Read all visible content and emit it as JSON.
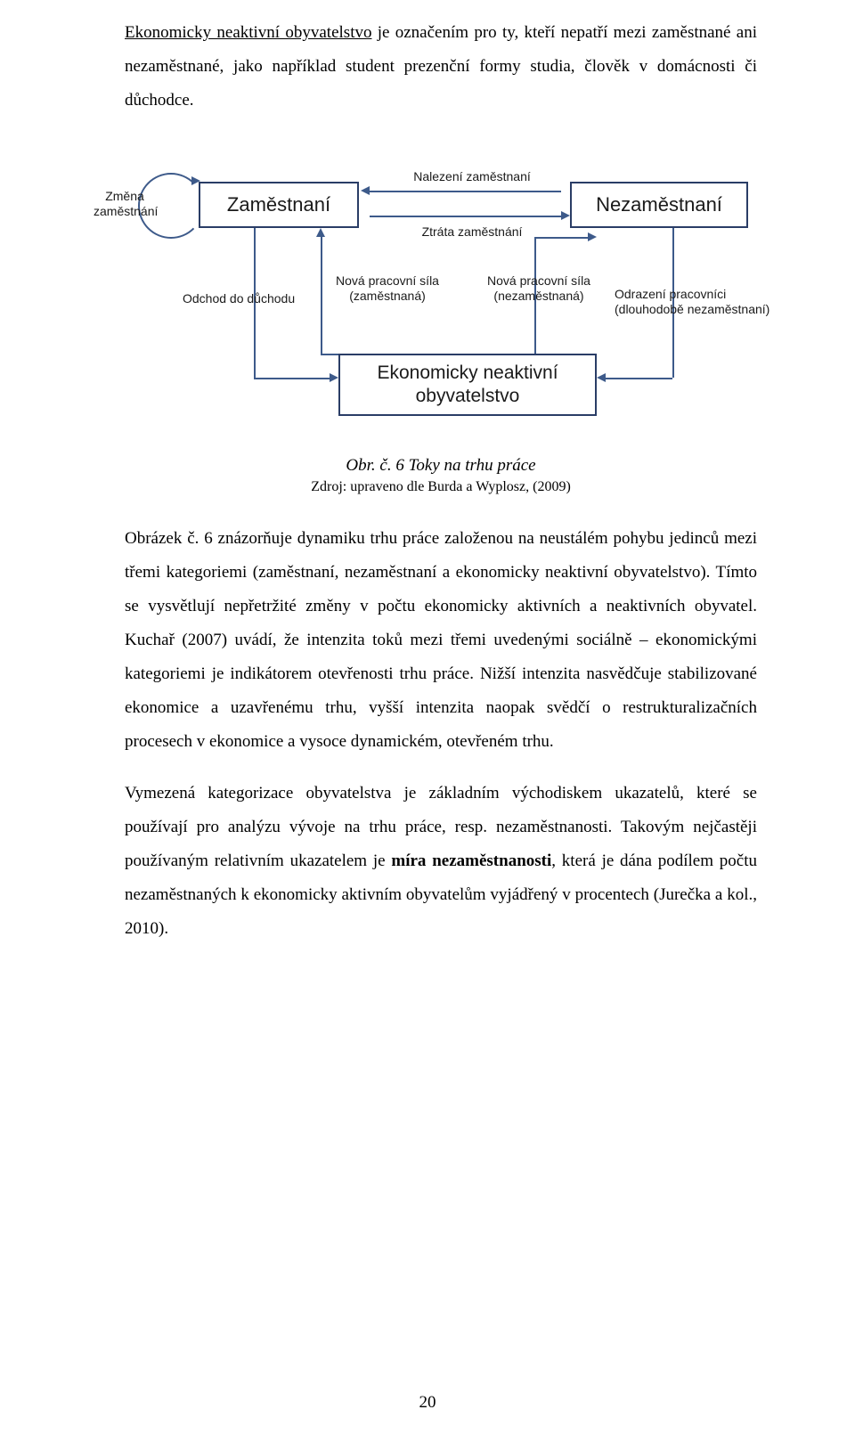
{
  "intro": {
    "lead_underline": "Ekonomicky neaktivní obyvatelstvo",
    "lead_rest": " je označením pro ty, kteří nepatří mezi zaměstnané ani nezaměstnané, jako například student prezenční formy studia, člověk v domácnosti či důchodce."
  },
  "diagram": {
    "colors": {
      "stroke": "#2a3d66",
      "arrow": "#3d5a8a",
      "text": "#1a1a1a",
      "bg": "#ffffff"
    },
    "boxes": {
      "employed": "Zaměstnaní",
      "unemployed": "Nezaměstnaní",
      "inactive_l1": "Ekonomicky neaktivní",
      "inactive_l2": "obyvatelstvo"
    },
    "labels": {
      "change_l1": "Změna",
      "change_l2": "zaměstnání",
      "find": "Nalezení zaměstnaní",
      "loss": "Ztráta zaměstnání",
      "retire": "Odchod do důchodu",
      "new_emp_l1": "Nová pracovní síla",
      "new_emp_l2": "(zaměstnaná)",
      "new_unemp_l1": "Nová pracovní síla",
      "new_unemp_l2": "(nezaměstnaná)",
      "discouraged_l1": "Odrazení pracovníci",
      "discouraged_l2": "(dlouhodobě nezaměstnaní)"
    }
  },
  "caption": "Obr. č. 6 Toky na trhu práce",
  "source": "Zdroj: upraveno dle Burda a Wyplosz, (2009)",
  "body1": {
    "p1_a": "Obrázek č. 6 znázorňuje dynamiku trhu práce založenou na neustálém pohybu jedinců mezi třemi kategoriemi (zaměstnaní, nezaměstnaní a ekonomicky neaktivní obyvatelstvo). Tímto se vysvětlují nepřetržité změny v počtu ekonomicky aktivních a neaktivních obyvatel. Kuchař (2007) uvádí, že intenzita toků mezi třemi uvedenými sociálně – ekonomickými kategoriemi je indikátorem otevřenosti trhu práce. Nižší intenzita nasvědčuje stabilizované ekonomice a uzavřenému trhu, vyšší intenzita naopak svědčí o restrukturalizačních procesech v ekonomice a vysoce dynamickém, otevřeném trhu."
  },
  "body2": {
    "p2_a": "Vymezená kategorizace obyvatelstva je základním východiskem ukazatelů, které se používají pro analýzu vývoje na trhu práce, resp. nezaměstnanosti. Takovým nejčastěji používaným relativním ukazatelem je ",
    "p2_bold": "míra nezaměstnanosti",
    "p2_b": ", která je dána podílem počtu nezaměstnaných k ekonomicky aktivním obyvatelům vyjádřený v procentech (Jurečka a kol., 2010)."
  },
  "page": "20"
}
